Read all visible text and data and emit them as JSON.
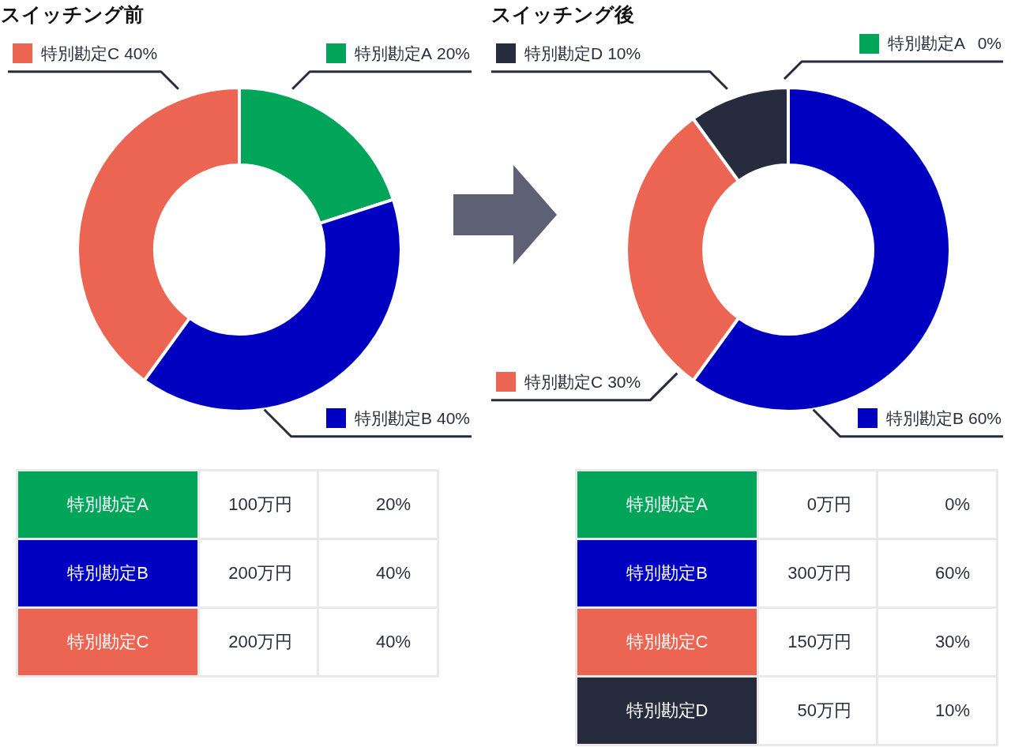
{
  "chart_data": [
    {
      "type": "donut",
      "title": "スイッチング前",
      "categories": [
        "特別勘定A",
        "特別勘定B",
        "特別勘定C"
      ],
      "values": [
        20,
        40,
        40
      ],
      "colors": [
        "#00a55a",
        "#0000c0",
        "#ec6553"
      ],
      "value_labels": [
        "20%",
        "40%",
        "40%"
      ],
      "annotations": [
        "100万円",
        "200万円",
        "200万円"
      ],
      "legend": "top left"
    },
    {
      "type": "donut",
      "title": "スイッチング後",
      "categories": [
        "特別勘定A",
        "特別勘定B",
        "特別勘定C",
        "特別勘定D"
      ],
      "values": [
        0,
        60,
        30,
        10
      ],
      "colors": [
        "#00a55a",
        "#0000c0",
        "#ec6553",
        "#262b3d"
      ],
      "value_labels": [
        "0%",
        "60%",
        "30%",
        "10%"
      ],
      "annotations": [
        "0万円",
        "300万円",
        "150万円",
        "50万円"
      ],
      "legend": "top left"
    }
  ]
}
